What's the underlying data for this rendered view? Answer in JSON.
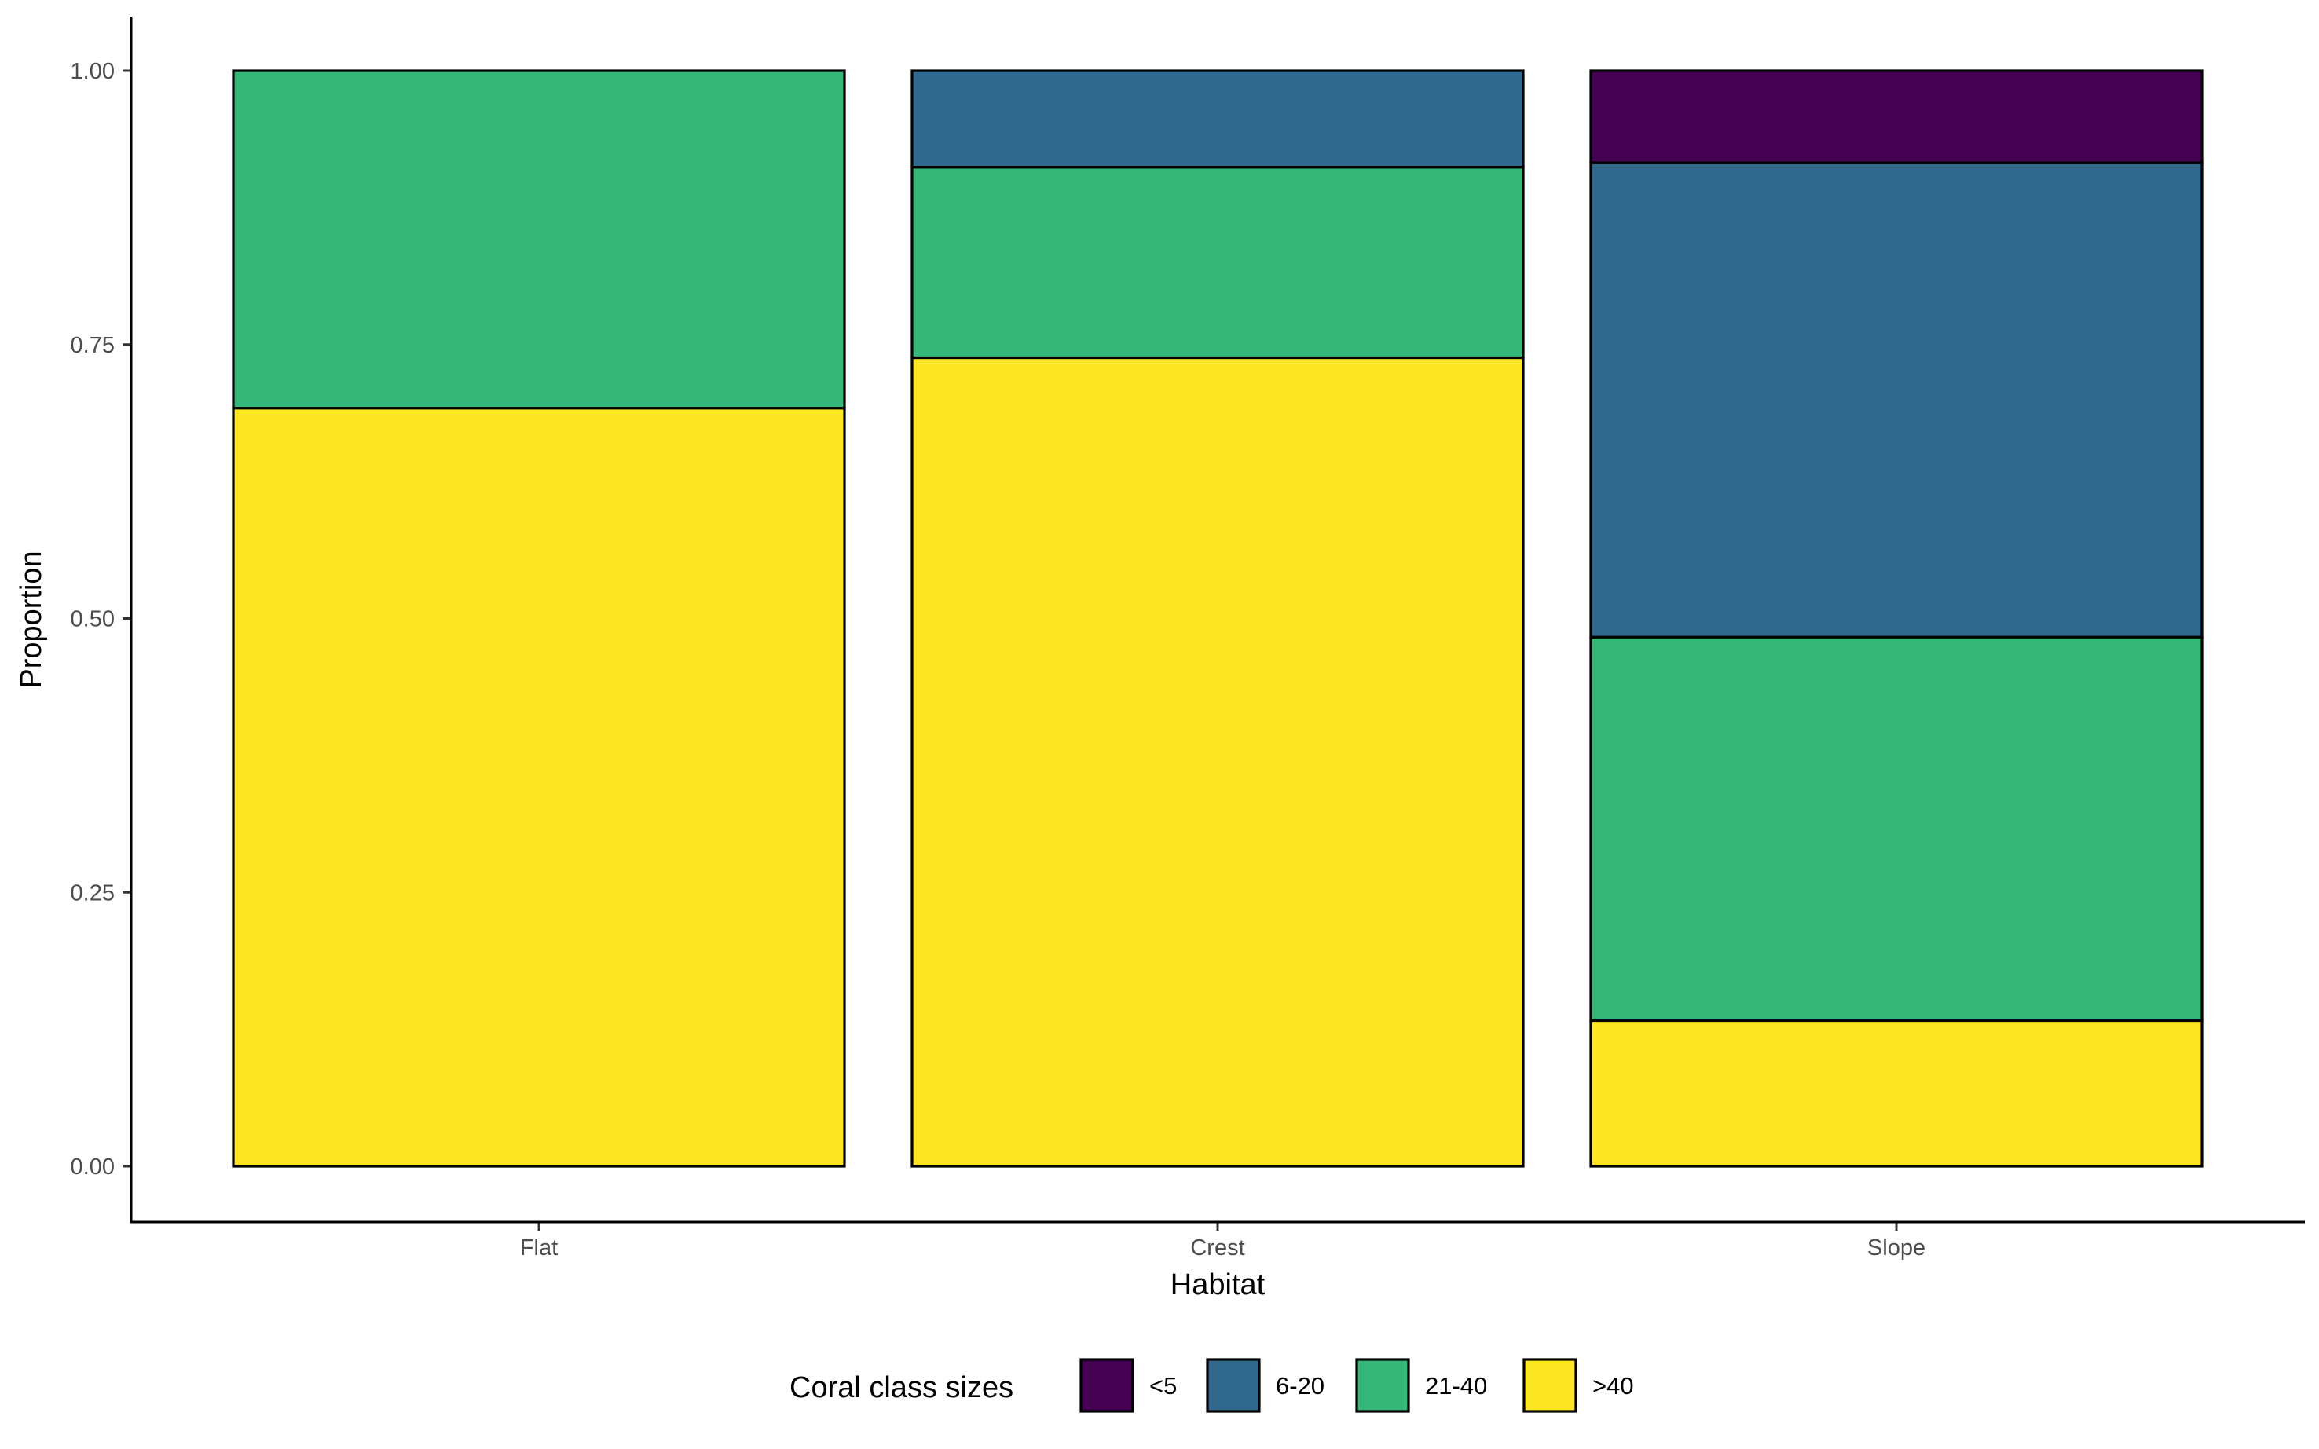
{
  "chart_data": {
    "type": "bar",
    "stacked": true,
    "title": "",
    "xlabel": "Habitat",
    "ylabel": "Proportion",
    "ylim": [
      0,
      1
    ],
    "yticks": [
      "0.00",
      "0.25",
      "0.50",
      "0.75",
      "1.00"
    ],
    "categories": [
      "Flat",
      "Crest",
      "Slope"
    ],
    "legend": {
      "title": "Coral class sizes",
      "position": "bottom"
    },
    "series": [
      {
        "name": "<5",
        "color": "#440154",
        "values": [
          0.0,
          0.0,
          0.084
        ]
      },
      {
        "name": "6-20",
        "color": "#31688E",
        "values": [
          0.0,
          0.088,
          0.433
        ]
      },
      {
        "name": "21-40",
        "color": "#35B779",
        "values": [
          0.308,
          0.174,
          0.35
        ]
      },
      {
        "name": ">40",
        "color": "#FDE725",
        "values": [
          0.692,
          0.738,
          0.133
        ]
      }
    ],
    "grid": false
  }
}
